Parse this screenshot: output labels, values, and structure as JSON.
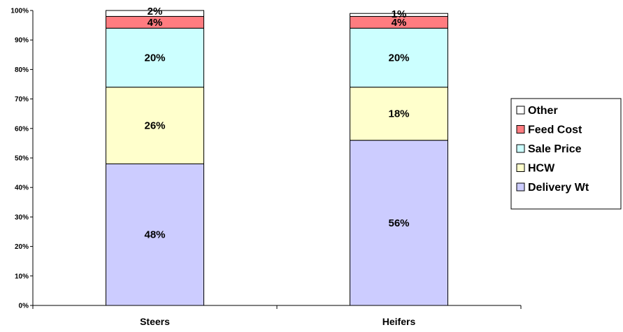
{
  "chart_data": {
    "type": "bar",
    "stacked": true,
    "percent": true,
    "title": "",
    "xlabel": "",
    "ylabel": "",
    "ylim": [
      0,
      100
    ],
    "y_ticks": [
      "0%",
      "10%",
      "20%",
      "30%",
      "40%",
      "50%",
      "60%",
      "70%",
      "80%",
      "90%",
      "100%"
    ],
    "grid": false,
    "legend_position": "right",
    "categories": [
      "Steers",
      "Heifers"
    ],
    "series": [
      {
        "name": "Delivery Wt",
        "values": [
          48,
          56
        ],
        "labels": [
          "48%",
          "56%"
        ],
        "color": "#ccccff"
      },
      {
        "name": "HCW",
        "values": [
          26,
          18
        ],
        "labels": [
          "26%",
          "18%"
        ],
        "color": "#ffffcc"
      },
      {
        "name": "Sale Price",
        "values": [
          20,
          20
        ],
        "labels": [
          "20%",
          "20%"
        ],
        "color": "#ccffff"
      },
      {
        "name": "Feed Cost",
        "values": [
          4,
          4
        ],
        "labels": [
          "4%",
          "4%"
        ],
        "color": "#ff7c80"
      },
      {
        "name": "Other",
        "values": [
          2,
          1
        ],
        "labels": [
          "2%",
          "1%"
        ],
        "color": "#ffffff"
      }
    ],
    "legend_order": [
      "Other",
      "Feed Cost",
      "Sale Price",
      "HCW",
      "Delivery Wt"
    ]
  }
}
